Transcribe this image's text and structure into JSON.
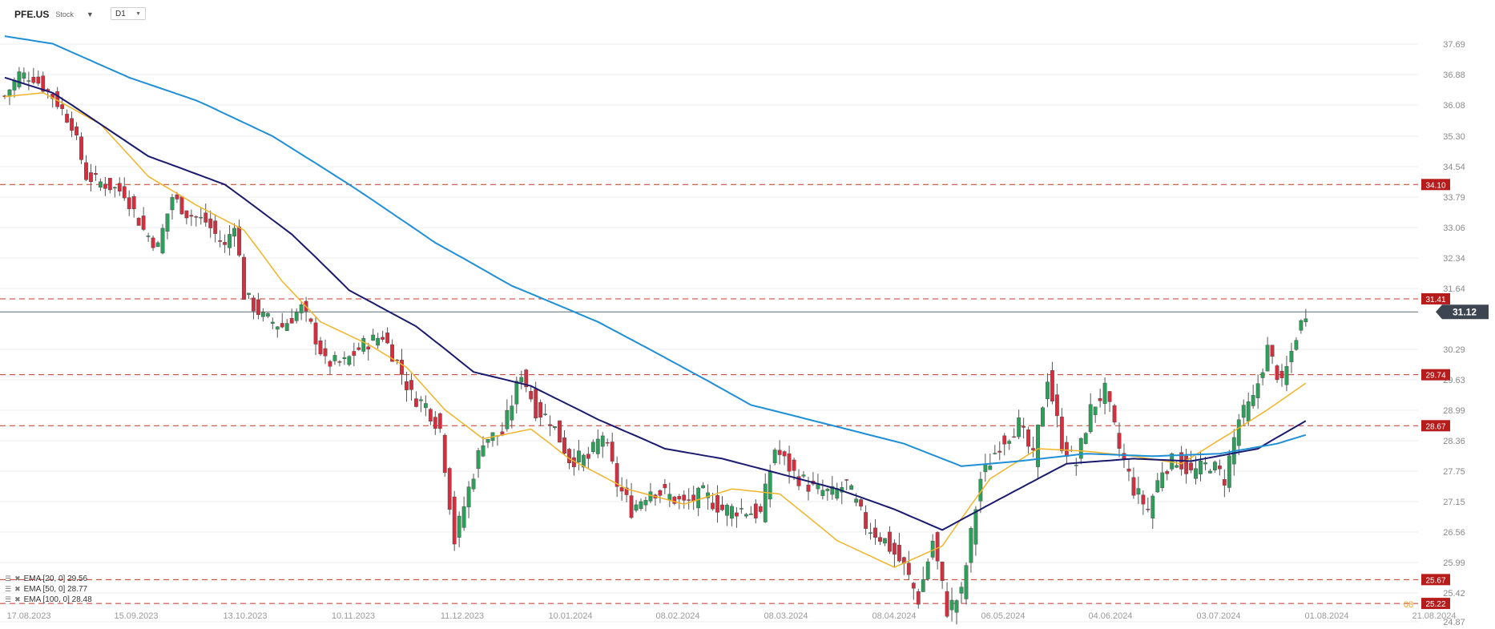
{
  "header": {
    "symbol": "PFE.US",
    "symbol_type": "Stock",
    "timeframe": "D1"
  },
  "legend": [
    {
      "label": "EMA [20, 0] 29.56",
      "color": "#f0b429"
    },
    {
      "label": "EMA [50, 0] 28.77",
      "color": "#1a1a6e"
    },
    {
      "label": "EMA [100, 0] 28.48",
      "color": "#1f8fd6"
    }
  ],
  "chart_data": {
    "type": "candlestick",
    "y_ticks": [
      "37.69",
      "36.88",
      "36.08",
      "35.30",
      "34.54",
      "33.79",
      "33.06",
      "32.34",
      "31.64",
      "30.29",
      "29.63",
      "28.99",
      "28.36",
      "27.75",
      "27.15",
      "26.56",
      "25.99",
      "25.42",
      "24.87"
    ],
    "y_tick_values": [
      37.69,
      36.88,
      36.08,
      35.3,
      34.54,
      33.79,
      33.06,
      32.34,
      31.64,
      30.29,
      29.63,
      28.99,
      28.36,
      27.75,
      27.15,
      26.56,
      25.99,
      25.42,
      24.87
    ],
    "x_ticks": [
      "17.08.2023",
      "15.09.2023",
      "13.10.2023",
      "10.11.2023",
      "11.12.2023",
      "10.01.2024",
      "08.02.2024",
      "08.03.2024",
      "08.04.2024",
      "06.05.2024",
      "04.06.2024",
      "03.07.2024",
      "01.08.2024",
      "21.08.2024"
    ],
    "levels": [
      {
        "label": "34.10",
        "value": 34.1
      },
      {
        "label": "31.41",
        "value": 31.41
      },
      {
        "label": "29.74",
        "value": 29.74
      },
      {
        "label": "28.67",
        "value": 28.67
      },
      {
        "label": "25.67",
        "value": 25.67
      },
      {
        "label": "25.22",
        "value": 25.22
      }
    ],
    "current_price": {
      "label": "31.12",
      "value": 31.12
    },
    "partial_tick_label": "08",
    "series": [
      {
        "name": "EMA [20, 0]",
        "color": "#f0b429",
        "anchors": [
          [
            0,
            36.3
          ],
          [
            8,
            36.4
          ],
          [
            20,
            35.6
          ],
          [
            30,
            34.3
          ],
          [
            40,
            33.6
          ],
          [
            50,
            33.0
          ],
          [
            58,
            31.8
          ],
          [
            66,
            30.9
          ],
          [
            76,
            30.4
          ],
          [
            84,
            29.9
          ],
          [
            92,
            29.0
          ],
          [
            100,
            28.4
          ],
          [
            110,
            28.6
          ],
          [
            118,
            28.0
          ],
          [
            130,
            27.4
          ],
          [
            142,
            27.1
          ],
          [
            152,
            27.4
          ],
          [
            162,
            27.3
          ],
          [
            174,
            26.4
          ],
          [
            186,
            25.9
          ],
          [
            196,
            26.3
          ],
          [
            206,
            27.6
          ],
          [
            216,
            28.2
          ],
          [
            226,
            28.15
          ],
          [
            236,
            28.05
          ],
          [
            246,
            27.9
          ],
          [
            256,
            28.5
          ],
          [
            264,
            29.0
          ],
          [
            272,
            29.56
          ]
        ]
      },
      {
        "name": "EMA [50, 0]",
        "color": "#1a1a6e",
        "anchors": [
          [
            0,
            36.8
          ],
          [
            10,
            36.4
          ],
          [
            30,
            34.8
          ],
          [
            46,
            34.1
          ],
          [
            60,
            32.9
          ],
          [
            72,
            31.6
          ],
          [
            86,
            30.8
          ],
          [
            98,
            29.8
          ],
          [
            110,
            29.5
          ],
          [
            124,
            28.8
          ],
          [
            138,
            28.2
          ],
          [
            150,
            28.0
          ],
          [
            162,
            27.7
          ],
          [
            174,
            27.4
          ],
          [
            186,
            27.0
          ],
          [
            196,
            26.6
          ],
          [
            210,
            27.3
          ],
          [
            222,
            27.9
          ],
          [
            236,
            28.0
          ],
          [
            248,
            27.95
          ],
          [
            262,
            28.2
          ],
          [
            272,
            28.77
          ]
        ]
      },
      {
        "name": "EMA [100, 0]",
        "color": "#1f8fd6",
        "anchors": [
          [
            0,
            37.9
          ],
          [
            10,
            37.7
          ],
          [
            26,
            36.8
          ],
          [
            40,
            36.2
          ],
          [
            56,
            35.3
          ],
          [
            72,
            34.1
          ],
          [
            90,
            32.7
          ],
          [
            106,
            31.7
          ],
          [
            124,
            30.9
          ],
          [
            140,
            30.0
          ],
          [
            156,
            29.1
          ],
          [
            172,
            28.7
          ],
          [
            188,
            28.3
          ],
          [
            200,
            27.85
          ],
          [
            212,
            27.95
          ],
          [
            226,
            28.1
          ],
          [
            240,
            28.05
          ],
          [
            254,
            28.1
          ],
          [
            266,
            28.3
          ],
          [
            272,
            28.48
          ]
        ]
      },
      {
        "name": "price",
        "color": "#333333",
        "anchors": [
          [
            0,
            36.3
          ],
          [
            3,
            36.9
          ],
          [
            6,
            36.8
          ],
          [
            10,
            36.3
          ],
          [
            14,
            35.6
          ],
          [
            17,
            34.3
          ],
          [
            21,
            34.1
          ],
          [
            25,
            33.9
          ],
          [
            29,
            33.0
          ],
          [
            32,
            32.6
          ],
          [
            35,
            33.8
          ],
          [
            38,
            33.4
          ],
          [
            42,
            33.2
          ],
          [
            46,
            32.6
          ],
          [
            48,
            33.2
          ],
          [
            50,
            31.5
          ],
          [
            54,
            31.0
          ],
          [
            58,
            30.8
          ],
          [
            62,
            31.2
          ],
          [
            64,
            30.8
          ],
          [
            67,
            30.0
          ],
          [
            71,
            30.0
          ],
          [
            75,
            30.4
          ],
          [
            79,
            30.6
          ],
          [
            82,
            30.0
          ],
          [
            85,
            29.3
          ],
          [
            88,
            29.1
          ],
          [
            91,
            28.6
          ],
          [
            94,
            26.4
          ],
          [
            97,
            27.4
          ],
          [
            100,
            28.4
          ],
          [
            104,
            28.5
          ],
          [
            108,
            29.8
          ],
          [
            111,
            29.0
          ],
          [
            114,
            28.8
          ],
          [
            118,
            28.0
          ],
          [
            122,
            28.0
          ],
          [
            125,
            28.5
          ],
          [
            128,
            27.5
          ],
          [
            131,
            27.0
          ],
          [
            135,
            27.4
          ],
          [
            138,
            27.3
          ],
          [
            142,
            27.1
          ],
          [
            146,
            27.3
          ],
          [
            150,
            27.0
          ],
          [
            154,
            27.0
          ],
          [
            158,
            26.9
          ],
          [
            161,
            28.2
          ],
          [
            165,
            27.7
          ],
          [
            169,
            27.4
          ],
          [
            173,
            27.3
          ],
          [
            176,
            27.5
          ],
          [
            180,
            26.7
          ],
          [
            184,
            26.4
          ],
          [
            188,
            25.9
          ],
          [
            191,
            25.3
          ],
          [
            194,
            26.4
          ],
          [
            197,
            25.1
          ],
          [
            200,
            25.4
          ],
          [
            204,
            27.6
          ],
          [
            208,
            28.3
          ],
          [
            212,
            28.7
          ],
          [
            215,
            28.0
          ],
          [
            218,
            29.7
          ],
          [
            221,
            28.3
          ],
          [
            224,
            27.9
          ],
          [
            227,
            29.0
          ],
          [
            230,
            29.4
          ],
          [
            233,
            28.2
          ],
          [
            236,
            27.4
          ],
          [
            239,
            27.0
          ],
          [
            242,
            27.8
          ],
          [
            245,
            28.0
          ],
          [
            248,
            27.7
          ],
          [
            252,
            27.9
          ],
          [
            255,
            27.6
          ],
          [
            258,
            28.8
          ],
          [
            261,
            29.2
          ],
          [
            264,
            30.3
          ],
          [
            267,
            29.5
          ],
          [
            270,
            30.6
          ],
          [
            272,
            31.12
          ]
        ]
      }
    ],
    "n_bars": 273,
    "ylim": [
      24.87,
      38.06
    ]
  }
}
